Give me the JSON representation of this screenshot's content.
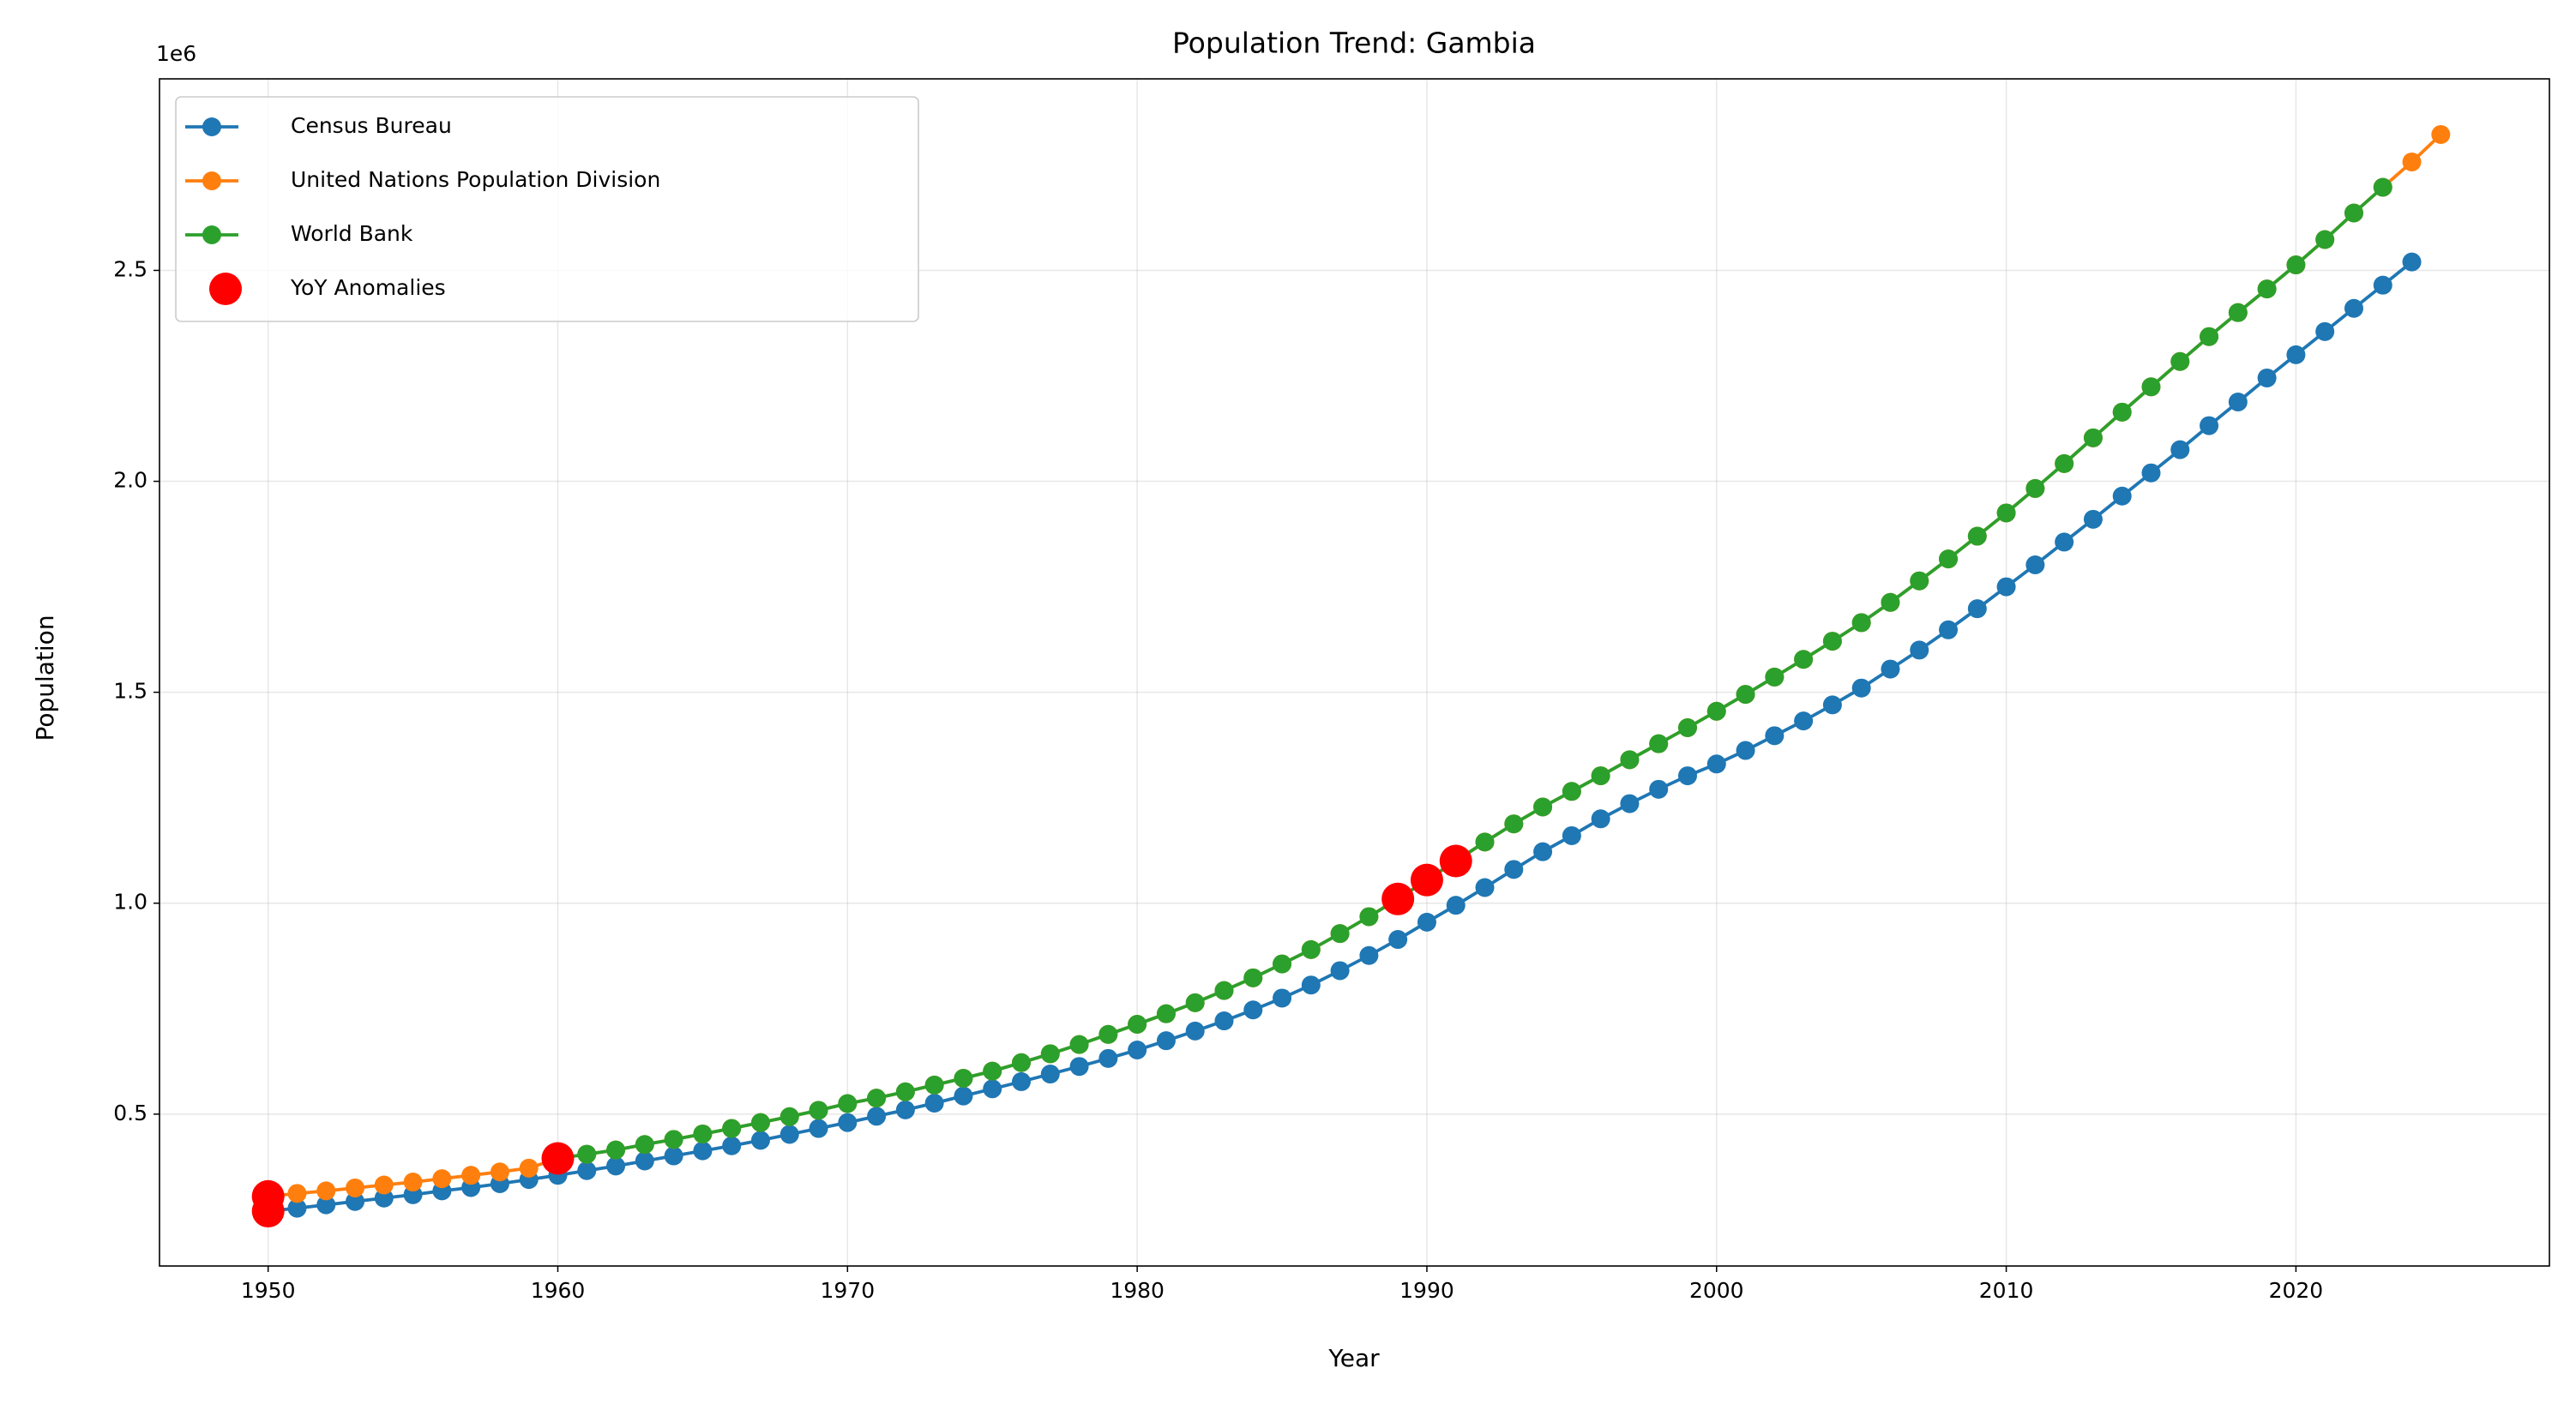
{
  "chart_data": {
    "type": "line",
    "title": "Population Trend: Gambia",
    "xlabel": "Year",
    "ylabel": "Population",
    "y_offset_label": "1e6",
    "xlim": [
      1946.25,
      2028.75
    ],
    "xticks": [
      1950,
      1960,
      1970,
      1980,
      1990,
      2000,
      2010,
      2020
    ],
    "ylim": [
      140000,
      2954000
    ],
    "yticks": [
      {
        "value": 500000,
        "label": "0.5"
      },
      {
        "value": 1000000,
        "label": "1.0"
      },
      {
        "value": 1500000,
        "label": "1.5"
      },
      {
        "value": 2000000,
        "label": "2.0"
      },
      {
        "value": 2500000,
        "label": "2.5"
      }
    ],
    "grid": true,
    "legend": "upper left",
    "series": [
      {
        "name": "Census Bureau",
        "color": "#1f77b4",
        "x": [
          1950,
          1951,
          1952,
          1953,
          1954,
          1955,
          1956,
          1957,
          1958,
          1959,
          1960,
          1961,
          1962,
          1963,
          1964,
          1965,
          1966,
          1967,
          1968,
          1969,
          1970,
          1971,
          1972,
          1973,
          1974,
          1975,
          1976,
          1977,
          1978,
          1979,
          1980,
          1981,
          1982,
          1983,
          1984,
          1985,
          1986,
          1987,
          1988,
          1989,
          1990,
          1991,
          1992,
          1993,
          1994,
          1995,
          1996,
          1997,
          1998,
          1999,
          2000,
          2001,
          2002,
          2003,
          2004,
          2005,
          2006,
          2007,
          2008,
          2009,
          2010,
          2011,
          2012,
          2013,
          2014,
          2015,
          2016,
          2017,
          2018,
          2019,
          2020,
          2021,
          2022,
          2023,
          2024
        ],
        "values": [
          270000,
          277000,
          285000,
          293000,
          301000,
          309000,
          318000,
          326000,
          335000,
          345000,
          355000,
          366000,
          377000,
          389000,
          401000,
          413000,
          425000,
          438000,
          452000,
          466000,
          480000,
          495000,
          510000,
          526000,
          543000,
          560000,
          577000,
          595000,
          613000,
          632000,
          652000,
          674000,
          697000,
          721000,
          747000,
          775000,
          806000,
          840000,
          876000,
          914000,
          955000,
          995000,
          1037000,
          1080000,
          1122000,
          1160000,
          1200000,
          1236000,
          1270000,
          1302000,
          1330000,
          1362000,
          1397000,
          1432000,
          1470000,
          1510000,
          1555000,
          1600000,
          1648000,
          1698000,
          1750000,
          1802000,
          1856000,
          1910000,
          1965000,
          2020000,
          2075000,
          2132000,
          2188000,
          2245000,
          2300000,
          2355000,
          2410000,
          2465000,
          2520000
        ]
      },
      {
        "name": "United Nations Population Division",
        "color": "#ff7f0e",
        "x": [
          1950,
          1951,
          1952,
          1953,
          1954,
          1955,
          1956,
          1957,
          1958,
          1959,
          1960,
          1961,
          1962,
          1963,
          1964,
          1965,
          1966,
          1967,
          1968,
          1969,
          1970,
          1971,
          1972,
          1973,
          1974,
          1975,
          1976,
          1977,
          1978,
          1979,
          1980,
          1981,
          1982,
          1983,
          1984,
          1985,
          1986,
          1987,
          1988,
          1989,
          1990,
          1991,
          1992,
          1993,
          1994,
          1995,
          1996,
          1997,
          1998,
          1999,
          2000,
          2001,
          2002,
          2003,
          2004,
          2005,
          2006,
          2007,
          2008,
          2009,
          2010,
          2011,
          2012,
          2013,
          2014,
          2015,
          2016,
          2017,
          2018,
          2019,
          2020,
          2021,
          2022,
          2023,
          2024,
          2025
        ],
        "values": [
          305000,
          312000,
          318000,
          325000,
          332000,
          339000,
          347000,
          355000,
          363000,
          372000,
          395000,
          405000,
          415000,
          428000,
          440000,
          453000,
          466000,
          480000,
          494000,
          509000,
          525000,
          538000,
          553000,
          569000,
          585000,
          602000,
          622000,
          643000,
          665000,
          689000,
          713000,
          738000,
          764000,
          793000,
          823000,
          856000,
          890000,
          928000,
          968000,
          1010000,
          1055000,
          1100000,
          1145000,
          1188000,
          1228000,
          1265000,
          1302000,
          1340000,
          1378000,
          1416000,
          1455000,
          1495000,
          1536000,
          1578000,
          1621000,
          1665000,
          1713000,
          1764000,
          1816000,
          1870000,
          1925000,
          1983000,
          2042000,
          2103000,
          2164000,
          2224000,
          2284000,
          2343000,
          2400000,
          2456000,
          2513000,
          2573000,
          2636000,
          2697000,
          2757000,
          2822000
        ]
      },
      {
        "name": "World Bank",
        "color": "#2ca02c",
        "x": [
          1960,
          1961,
          1962,
          1963,
          1964,
          1965,
          1966,
          1967,
          1968,
          1969,
          1970,
          1971,
          1972,
          1973,
          1974,
          1975,
          1976,
          1977,
          1978,
          1979,
          1980,
          1981,
          1982,
          1983,
          1984,
          1985,
          1986,
          1987,
          1988,
          1989,
          1990,
          1991,
          1992,
          1993,
          1994,
          1995,
          1996,
          1997,
          1998,
          1999,
          2000,
          2001,
          2002,
          2003,
          2004,
          2005,
          2006,
          2007,
          2008,
          2009,
          2010,
          2011,
          2012,
          2013,
          2014,
          2015,
          2016,
          2017,
          2018,
          2019,
          2020,
          2021,
          2022,
          2023
        ],
        "values": [
          395000,
          405000,
          415000,
          428000,
          440000,
          453000,
          466000,
          480000,
          494000,
          509000,
          525000,
          538000,
          553000,
          569000,
          585000,
          602000,
          622000,
          643000,
          665000,
          689000,
          713000,
          738000,
          764000,
          793000,
          823000,
          856000,
          890000,
          928000,
          968000,
          1010000,
          1055000,
          1100000,
          1145000,
          1188000,
          1228000,
          1265000,
          1302000,
          1340000,
          1378000,
          1416000,
          1455000,
          1495000,
          1536000,
          1578000,
          1621000,
          1665000,
          1713000,
          1764000,
          1816000,
          1870000,
          1925000,
          1983000,
          2042000,
          2103000,
          2164000,
          2224000,
          2284000,
          2343000,
          2400000,
          2456000,
          2513000,
          2573000,
          2636000,
          2697000
        ]
      },
      {
        "name": "YoY Anomalies",
        "color": "#ff0000",
        "mode": "markers",
        "x": [
          1950,
          1950,
          1960,
          1989,
          1990,
          1991
        ],
        "values": [
          270000,
          305000,
          395000,
          1010000,
          1055000,
          1100000
        ]
      }
    ]
  }
}
